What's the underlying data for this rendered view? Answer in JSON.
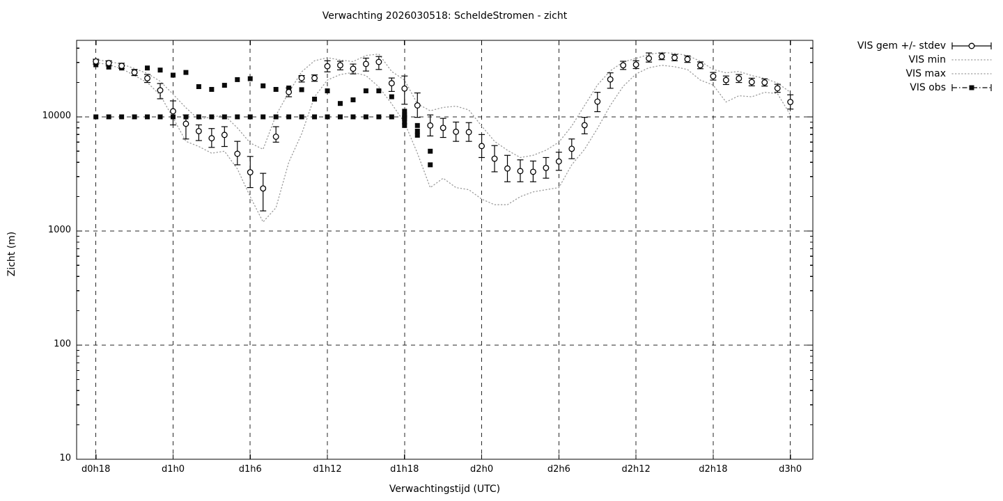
{
  "page": {
    "title": "Verwachting 2026030518: ScheldeStromen - zicht"
  },
  "colors": {
    "foreground": "#000000",
    "envelope_dotted": "#9a9a9a",
    "background": "#ffffff"
  },
  "axes": {
    "xlabel": "Verwachtingstijd (UTC)",
    "ylabel": "Zicht (m)",
    "y_scale": "log",
    "y_range": [
      10,
      46800
    ],
    "y_ticks": [
      10,
      100,
      1000,
      10000
    ],
    "y_tick_labels": [
      "10",
      "100",
      "1000",
      "10000"
    ],
    "x_tick_labels": [
      "d0h18",
      "d1h0",
      "d1h6",
      "d1h12",
      "d1h18",
      "d2h0",
      "d2h6",
      "d2h12",
      "d2h18",
      "d3h0"
    ],
    "x_tick_hours": [
      18,
      24,
      30,
      36,
      42,
      48,
      54,
      60,
      66,
      72
    ],
    "x_range_hours": [
      16.5,
      73.75
    ],
    "grid": "dashed"
  },
  "legend": {
    "position": "top-right-outside",
    "entries": [
      {
        "label": "VIS gem +/- stdev",
        "sample": "errorbar-circle"
      },
      {
        "label": "VIS min",
        "sample": "dotted"
      },
      {
        "label": "VIS max",
        "sample": "dotted"
      },
      {
        "label": "VIS obs",
        "sample": "errorbar-square-dashdot"
      }
    ]
  },
  "chart_data": {
    "type": "line",
    "title": "Verwachting 2026030518: ScheldeStromen - zicht",
    "xlabel": "Verwachtingstijd (UTC)",
    "ylabel": "Zicht (m)",
    "x_start_hour": 18,
    "x_step_hours": 1,
    "series": [
      {
        "id": "gem",
        "name": "VIS gem +/- stdev",
        "marker": "open-circle",
        "values": [
          30600,
          29600,
          28000,
          24500,
          21800,
          17100,
          11200,
          8700,
          7500,
          6500,
          6950,
          4750,
          3270,
          2360,
          6700,
          16500,
          21900,
          21900,
          27800,
          28300,
          26400,
          29100,
          30300,
          19700,
          17700,
          12600,
          8400,
          8000,
          7400,
          7350,
          5550,
          4300,
          3530,
          3350,
          3300,
          3570,
          4070,
          5250,
          8450,
          13600,
          21300,
          28300,
          28700,
          32500,
          33800,
          33000,
          32000,
          28300,
          22700,
          21000,
          21700,
          20200,
          20000,
          17800,
          13500
        ],
        "err_lo": [
          29000,
          28000,
          26500,
          23000,
          20000,
          14400,
          8500,
          6400,
          6200,
          5400,
          5500,
          3800,
          2400,
          1500,
          6000,
          15000,
          20200,
          20500,
          24800,
          25800,
          23800,
          25200,
          26000,
          16700,
          12900,
          9900,
          6800,
          6600,
          6100,
          6100,
          4400,
          3300,
          2700,
          2700,
          2700,
          2900,
          3400,
          4300,
          7100,
          11100,
          17800,
          26000,
          26500,
          30200,
          31700,
          31000,
          30000,
          26400,
          21000,
          19200,
          20000,
          18700,
          18600,
          16400,
          11700
        ],
        "err_hi": [
          32000,
          31000,
          29500,
          26000,
          23500,
          19600,
          13800,
          10400,
          8500,
          7900,
          8200,
          6100,
          4500,
          3200,
          8200,
          17900,
          23000,
          23300,
          31000,
          30700,
          29000,
          32700,
          33800,
          21900,
          22800,
          16200,
          10400,
          9700,
          9000,
          8900,
          7000,
          5600,
          4600,
          4200,
          4100,
          4400,
          4900,
          6400,
          9900,
          16400,
          24300,
          30700,
          31000,
          36300,
          36200,
          35200,
          34200,
          30300,
          24500,
          22800,
          23500,
          21800,
          21500,
          19300,
          15600
        ]
      },
      {
        "id": "min",
        "name": "VIS min",
        "style": "dotted",
        "values": [
          30000,
          28600,
          26500,
          23000,
          20000,
          15500,
          9800,
          6100,
          5500,
          4800,
          5000,
          3500,
          2000,
          1200,
          1600,
          4000,
          7100,
          15000,
          21000,
          23500,
          24500,
          23000,
          18300,
          13000,
          8900,
          4800,
          2400,
          2900,
          2400,
          2300,
          1900,
          1700,
          1700,
          2000,
          2200,
          2300,
          2400,
          3800,
          5200,
          7900,
          12600,
          18500,
          23800,
          26900,
          28300,
          27500,
          26000,
          21000,
          19000,
          13500,
          15300,
          15000,
          16400,
          16000,
          10400
        ]
      },
      {
        "id": "max",
        "name": "VIS max",
        "style": "dotted",
        "values": [
          31700,
          30600,
          29000,
          26500,
          24000,
          20500,
          15800,
          12000,
          9500,
          10000,
          10300,
          8000,
          5900,
          5200,
          10300,
          16400,
          24800,
          31000,
          33000,
          31500,
          30500,
          34500,
          35500,
          25000,
          21000,
          13000,
          11300,
          12100,
          12400,
          11500,
          8300,
          6100,
          5100,
          4400,
          4600,
          5100,
          6000,
          8300,
          12600,
          19000,
          25300,
          30300,
          32500,
          35200,
          36700,
          36000,
          34500,
          30700,
          26000,
          24300,
          25000,
          23000,
          21700,
          19800,
          16400
        ]
      },
      {
        "id": "obs",
        "name": "VIS obs",
        "marker": "filled-square",
        "points": [
          [
            18,
            28600
          ],
          [
            19,
            27300
          ],
          [
            20,
            26800
          ],
          [
            21,
            24800
          ],
          [
            22,
            26800
          ],
          [
            23,
            25700
          ],
          [
            24,
            23200
          ],
          [
            25,
            24500
          ],
          [
            26,
            18400
          ],
          [
            27,
            17400
          ],
          [
            28,
            18900
          ],
          [
            29,
            21200
          ],
          [
            30,
            21600
          ],
          [
            31,
            18700
          ],
          [
            32,
            17400
          ],
          [
            33,
            17900
          ],
          [
            34,
            17300
          ],
          [
            35,
            14300
          ],
          [
            36,
            16900
          ],
          [
            37,
            13100
          ],
          [
            38,
            14100
          ],
          [
            39,
            16900
          ],
          [
            40,
            16900
          ],
          [
            41,
            15000
          ],
          [
            18,
            10000
          ],
          [
            19,
            10000
          ],
          [
            20,
            10000
          ],
          [
            21,
            10000
          ],
          [
            22,
            10000
          ],
          [
            23,
            10000
          ],
          [
            24,
            10000
          ],
          [
            25,
            10000
          ],
          [
            26,
            10000
          ],
          [
            27,
            10000
          ],
          [
            28,
            10000
          ],
          [
            29,
            10000
          ],
          [
            30,
            10000
          ],
          [
            31,
            10000
          ],
          [
            32,
            10000
          ],
          [
            33,
            10000
          ],
          [
            34,
            10000
          ],
          [
            35,
            10000
          ],
          [
            36,
            10000
          ],
          [
            37,
            10000
          ],
          [
            38,
            10000
          ],
          [
            39,
            10000
          ],
          [
            40,
            10000
          ],
          [
            41,
            10000
          ],
          [
            42,
            10000
          ],
          [
            42,
            11200
          ],
          [
            42,
            10400
          ],
          [
            42,
            9700
          ],
          [
            42,
            9000
          ],
          [
            42,
            8400
          ],
          [
            43,
            8400
          ],
          [
            43,
            7500
          ],
          [
            43,
            6900
          ],
          [
            44,
            5000
          ],
          [
            44,
            3800
          ]
        ]
      }
    ]
  }
}
